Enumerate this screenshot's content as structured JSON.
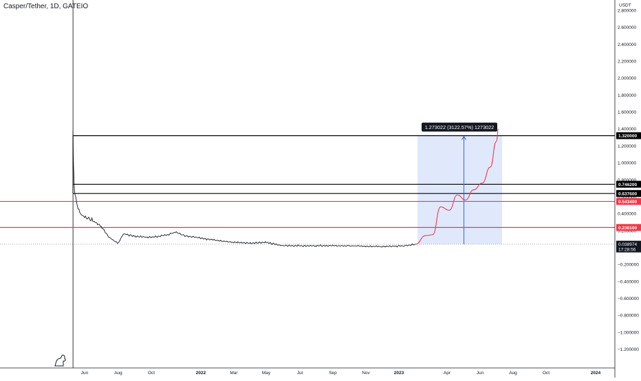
{
  "header": {
    "title": "Casper/Tether, 1D, GATEIO"
  },
  "price_axis": {
    "currency_label": "USDT",
    "tick_labels": [
      "2.800000",
      "2.600000",
      "2.400000",
      "2.200000",
      "2.000000",
      "1.800000",
      "1.600000",
      "1.400000",
      "1.200000",
      "1.000000",
      "0.800000",
      "0.600000",
      "0.400000",
      "0.200000",
      "−0.200000",
      "−0.400000",
      "−0.600000",
      "−0.800000",
      "−1.000000",
      "−1.200000"
    ],
    "tick_values": [
      2.8,
      2.6,
      2.4,
      2.2,
      2.0,
      1.8,
      1.6,
      1.4,
      1.2,
      1.0,
      0.8,
      0.6,
      0.4,
      0.2,
      -0.2,
      -0.4,
      -0.6,
      -0.8,
      -1.0,
      -1.2
    ],
    "current_price_label": "0.038974",
    "countdown_label": "17:28:56"
  },
  "time_axis": {
    "labels": [
      "Jun",
      "Aug",
      "Oct",
      "2022",
      "Mar",
      "May",
      "Jul",
      "Sep",
      "Nov",
      "2023",
      "Apr",
      "Jun",
      "Aug",
      "Oct",
      "2024"
    ]
  },
  "levels": [
    {
      "label": "1.320000",
      "value": 1.32,
      "color": "#000000"
    },
    {
      "label": "0.746200",
      "value": 0.7462,
      "color": "#000000"
    },
    {
      "label": "0.637600",
      "value": 0.6376,
      "color": "#000000"
    },
    {
      "label": "0.543400",
      "value": 0.5434,
      "color": "#f23645"
    },
    {
      "label": "0.236100",
      "value": 0.2361,
      "color": "#f23645"
    }
  ],
  "measure_tool": {
    "label": "1.273022 (3122.57%) 1273022",
    "from_value": 0.038974,
    "to_value": 1.32,
    "fill_color": "#d6e2fb",
    "line_color": "#2962ff"
  },
  "colors": {
    "price_line": "#131722",
    "projection": "#f23645",
    "axis_text": "#131722",
    "grid_dotted": "#9598a1"
  },
  "chart_data": {
    "type": "line",
    "title": "Casper/Tether, 1D, GATEIO",
    "ylabel": "USDT",
    "ylim": [
      -1.3,
      2.9
    ],
    "series": [
      {
        "x": [
          "2021-05-11",
          "2021-05-12",
          "2021-05-13",
          "2021-05-15",
          "2021-05-17",
          "2021-05-20",
          "2021-05-25",
          "2021-06-01",
          "2021-06-10",
          "2021-06-20",
          "2021-07-01",
          "2021-07-15",
          "2021-08-01",
          "2021-08-10",
          "2021-09-01",
          "2021-10-01",
          "2021-11-01",
          "2021-11-15",
          "2021-12-01",
          "2022-01-01",
          "2022-02-01",
          "2022-03-01",
          "2022-04-01",
          "2022-05-01",
          "2022-06-01",
          "2022-08-01",
          "2022-10-01",
          "2022-12-01",
          "2023-01-15",
          "2023-02-01"
        ],
        "values": [
          1.38,
          0.95,
          0.75,
          0.62,
          0.55,
          0.46,
          0.39,
          0.36,
          0.33,
          0.3,
          0.25,
          0.12,
          0.05,
          0.16,
          0.13,
          0.12,
          0.15,
          0.18,
          0.14,
          0.11,
          0.08,
          0.06,
          0.05,
          0.06,
          0.02,
          0.02,
          0.02,
          0.01,
          0.02,
          0.038974
        ]
      },
      {
        "x": [
          "2023-02-01",
          "2023-02-20",
          "2023-03-05",
          "2023-03-20",
          "2023-04-05",
          "2023-04-20",
          "2023-05-05",
          "2023-05-20",
          "2023-06-05",
          "2023-06-20",
          "2023-07-01",
          "2023-07-05"
        ],
        "values": [
          0.038974,
          0.14,
          0.15,
          0.48,
          0.44,
          0.62,
          0.56,
          0.68,
          0.76,
          0.95,
          1.25,
          1.4
        ]
      }
    ]
  }
}
